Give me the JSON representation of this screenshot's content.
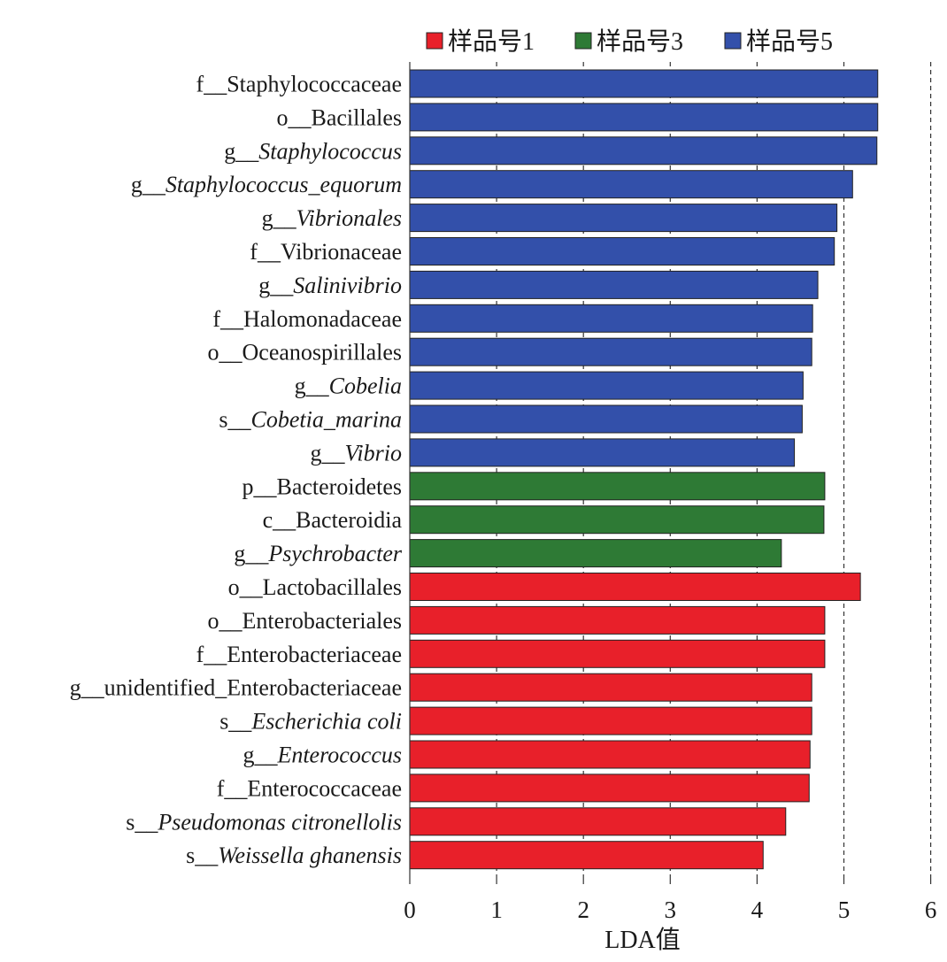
{
  "chart_data": {
    "type": "bar",
    "orientation": "horizontal",
    "xlabel": "LDA值",
    "xlim": [
      0,
      6
    ],
    "xticks": [
      0,
      1,
      2,
      3,
      4,
      5,
      6
    ],
    "grid": "vertical dashed lines at ticks",
    "legend_position": "top",
    "legend": [
      {
        "name": "样品号1",
        "color": "#e8202a"
      },
      {
        "name": "样品号3",
        "color": "#2e7a35"
      },
      {
        "name": "样品号5",
        "color": "#3350aa"
      }
    ],
    "bars": [
      {
        "prefix": "f__",
        "name": "Staphylococcaceae",
        "italic": false,
        "group": 2,
        "value": 5.39
      },
      {
        "prefix": "o__",
        "name": "Bacillales",
        "italic": false,
        "group": 2,
        "value": 5.39
      },
      {
        "prefix": "g__",
        "name": "Staphylococcus",
        "italic": true,
        "group": 2,
        "value": 5.38
      },
      {
        "prefix": "g__",
        "name": "Staphylococcus_equorum",
        "italic": true,
        "group": 2,
        "value": 5.1
      },
      {
        "prefix": "g__",
        "name": "Vibrionales",
        "italic": true,
        "group": 2,
        "value": 4.92
      },
      {
        "prefix": "f__",
        "name": "Vibrionaceae",
        "italic": false,
        "group": 2,
        "value": 4.89
      },
      {
        "prefix": "g__",
        "name": "Salinivibrio",
        "italic": true,
        "group": 2,
        "value": 4.7
      },
      {
        "prefix": "f__",
        "name": "Halomonadaceae",
        "italic": false,
        "group": 2,
        "value": 4.64
      },
      {
        "prefix": "o__",
        "name": "Oceanospirillales",
        "italic": false,
        "group": 2,
        "value": 4.63
      },
      {
        "prefix": "g__",
        "name": "Cobelia",
        "italic": true,
        "group": 2,
        "value": 4.53
      },
      {
        "prefix": "s__",
        "name": "Cobetia_marina",
        "italic": true,
        "group": 2,
        "value": 4.52
      },
      {
        "prefix": "g__",
        "name": "Vibrio",
        "italic": true,
        "group": 2,
        "value": 4.43
      },
      {
        "prefix": "p__",
        "name": "Bacteroidetes",
        "italic": false,
        "group": 1,
        "value": 4.78
      },
      {
        "prefix": "c__",
        "name": "Bacteroidia",
        "italic": false,
        "group": 1,
        "value": 4.77
      },
      {
        "prefix": "g__",
        "name": "Psychrobacter",
        "italic": true,
        "group": 1,
        "value": 4.28
      },
      {
        "prefix": "o__",
        "name": "Lactobacillales",
        "italic": false,
        "group": 0,
        "value": 5.19
      },
      {
        "prefix": "o__",
        "name": "Enterobacteriales",
        "italic": false,
        "group": 0,
        "value": 4.78
      },
      {
        "prefix": "f__",
        "name": "Enterobacteriaceae",
        "italic": false,
        "group": 0,
        "value": 4.78
      },
      {
        "prefix": "g__",
        "name": "unidentified_Enterobacteriaceae",
        "italic": false,
        "group": 0,
        "value": 4.63
      },
      {
        "prefix": "s__",
        "name": "Escherichia coli",
        "italic": true,
        "group": 0,
        "value": 4.63
      },
      {
        "prefix": "g__",
        "name": "Enterococcus",
        "italic": true,
        "group": 0,
        "value": 4.61
      },
      {
        "prefix": "f__",
        "name": "Enterococcaceae",
        "italic": false,
        "group": 0,
        "value": 4.6
      },
      {
        "prefix": "s__",
        "name": "Pseudomonas citronellolis",
        "italic": true,
        "group": 0,
        "value": 4.33
      },
      {
        "prefix": "s__",
        "name": "Weissella ghanensis",
        "italic": true,
        "group": 0,
        "value": 4.07
      }
    ]
  }
}
